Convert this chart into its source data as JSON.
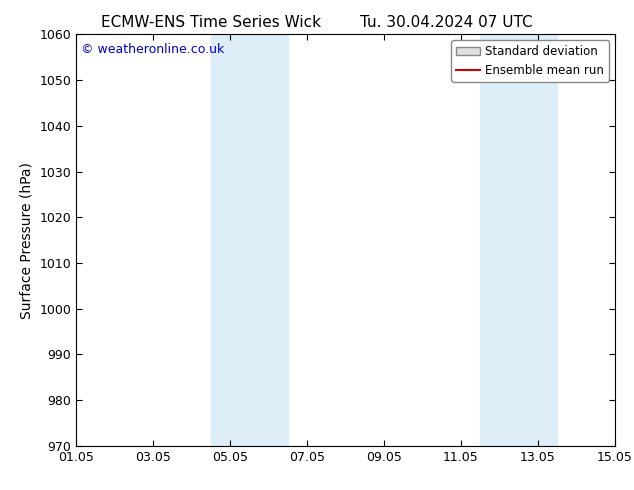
{
  "title_left": "ECMW-ENS Time Series Wick",
  "title_right": "Tu. 30.04.2024 07 UTC",
  "ylabel": "Surface Pressure (hPa)",
  "ylim": [
    970,
    1060
  ],
  "yticks": [
    970,
    980,
    990,
    1000,
    1010,
    1020,
    1030,
    1040,
    1050,
    1060
  ],
  "xlim": [
    0,
    14
  ],
  "xtick_labels": [
    "01.05",
    "03.05",
    "05.05",
    "07.05",
    "09.05",
    "11.05",
    "13.05",
    "15.05"
  ],
  "xtick_positions": [
    0,
    2,
    4,
    6,
    8,
    10,
    12,
    14
  ],
  "shaded_bands": [
    {
      "x_start": 3.5,
      "x_end": 5.5
    },
    {
      "x_start": 10.5,
      "x_end": 12.5
    }
  ],
  "shade_color": "#ddeef8",
  "watermark_text": "© weatheronline.co.uk",
  "watermark_color": "#0000cc",
  "legend_std_label": "Standard deviation",
  "legend_ens_label": "Ensemble mean run",
  "legend_std_facecolor": "#e0e0e0",
  "legend_std_edgecolor": "#888888",
  "legend_ens_color": "#cc0000",
  "bg_color": "#ffffff",
  "title_fontsize": 11,
  "ylabel_fontsize": 10,
  "tick_fontsize": 9,
  "watermark_fontsize": 9,
  "legend_fontsize": 8.5
}
